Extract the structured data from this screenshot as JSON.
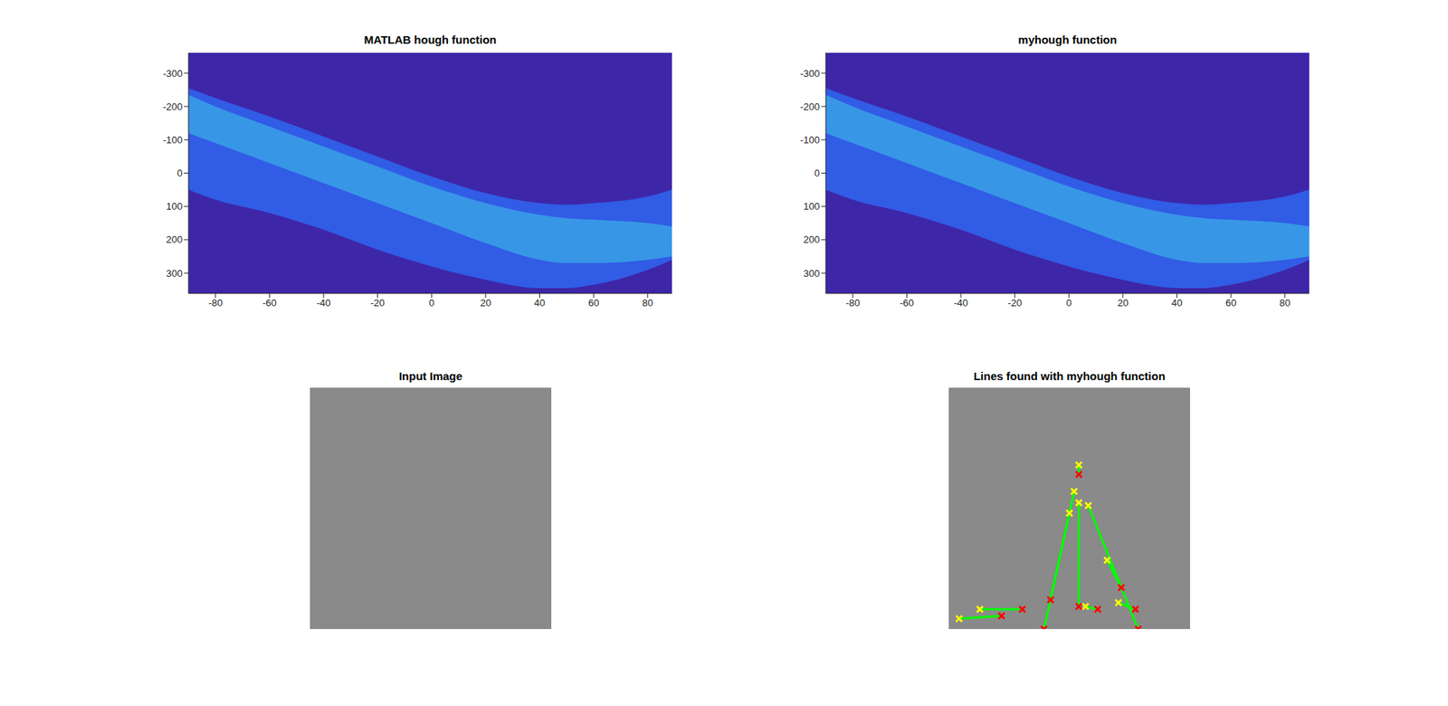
{
  "chart_data": [
    {
      "type": "area",
      "title": "MATLAB hough function",
      "color": "#3e26a8",
      "x": [
        -90,
        -80,
        -60,
        -40,
        -20,
        0,
        20,
        40,
        50,
        60,
        80,
        89
      ],
      "series": [
        {
          "color": "#2f66f0",
          "low": [
            -255,
            -225,
            -170,
            -110,
            -50,
            10,
            60,
            90,
            95,
            90,
            70,
            50
          ],
          "high": [
            50,
            80,
            120,
            170,
            230,
            280,
            320,
            345,
            345,
            335,
            290,
            260
          ]
        },
        {
          "color": "#3aa0e8",
          "low": [
            -235,
            -200,
            -140,
            -80,
            -20,
            40,
            90,
            125,
            135,
            140,
            150,
            160
          ],
          "high": [
            -120,
            -90,
            -30,
            30,
            90,
            150,
            210,
            260,
            270,
            270,
            260,
            250
          ]
        }
      ],
      "xlim": [
        -90,
        89
      ],
      "ylim": [
        -361,
        361
      ],
      "xticks": [
        -80,
        -60,
        -40,
        -20,
        0,
        20,
        40,
        60,
        80
      ],
      "yticks": [
        -300,
        -200,
        -100,
        0,
        100,
        200,
        300
      ]
    },
    {
      "type": "area",
      "title": "myhough function",
      "color": "#3e26a8",
      "x": [
        -90,
        -80,
        -60,
        -40,
        -20,
        0,
        20,
        40,
        50,
        60,
        80,
        89
      ],
      "series": [
        {
          "color": "#2f66f0",
          "low": [
            -255,
            -225,
            -170,
            -110,
            -50,
            10,
            60,
            90,
            95,
            90,
            70,
            50
          ],
          "high": [
            50,
            80,
            120,
            170,
            230,
            280,
            320,
            345,
            345,
            335,
            290,
            260
          ]
        },
        {
          "color": "#3aa0e8",
          "low": [
            -235,
            -200,
            -140,
            -80,
            -20,
            40,
            90,
            125,
            135,
            140,
            150,
            160
          ],
          "high": [
            -120,
            -90,
            -30,
            30,
            90,
            150,
            210,
            260,
            270,
            270,
            260,
            250
          ]
        }
      ],
      "xlim": [
        -90,
        89
      ],
      "ylim": [
        -361,
        361
      ],
      "xticks": [
        -80,
        -60,
        -40,
        -20,
        0,
        20,
        40,
        60,
        80
      ],
      "yticks": [
        -300,
        -200,
        -100,
        0,
        100,
        200,
        300
      ]
    },
    {
      "type": "image",
      "title": "Input Image",
      "color": "#8a8a8a",
      "tick_labels": false
    },
    {
      "type": "line",
      "title": "Lines found with myhough function",
      "color": "#8a8a8a",
      "tick_labels": false,
      "xlim": [
        0,
        256
      ],
      "ylim": [
        0,
        256
      ],
      "series": [
        {
          "color": "#00ff00",
          "marker": "x",
          "colors": [
            "#ffff00",
            "#ff0000"
          ],
          "x": [
            133,
            101
          ],
          "values": [
            110,
            256
          ]
        },
        {
          "color": "#00ff00",
          "marker": "x",
          "colors": [
            "#ffff00",
            "#ff0000"
          ],
          "x": [
            128,
            108
          ],
          "values": [
            133,
            225
          ]
        },
        {
          "color": "#00ff00",
          "marker": "x",
          "colors": [
            "#ffff00",
            "#ff0000"
          ],
          "x": [
            138,
            138
          ],
          "values": [
            122,
            232
          ]
        },
        {
          "color": "#00ff00",
          "marker": "x",
          "colors": [
            "#ffff00",
            "#ff0000"
          ],
          "x": [
            148,
            201
          ],
          "values": [
            125,
            256
          ]
        },
        {
          "color": "#00ff00",
          "marker": "x",
          "colors": [
            "#ffff00",
            "#ff0000"
          ],
          "x": [
            138,
            138
          ],
          "values": [
            82,
            92
          ]
        },
        {
          "color": "#00ff00",
          "marker": "x",
          "colors": [
            "#ffff00",
            "#ff0000"
          ],
          "x": [
            33,
            78
          ],
          "values": [
            235,
            235
          ]
        },
        {
          "color": "#00ff00",
          "marker": "x",
          "colors": [
            "#ffff00",
            "#ff0000"
          ],
          "x": [
            11,
            56
          ],
          "values": [
            245,
            242
          ]
        },
        {
          "color": "#00ff00",
          "marker": "x",
          "colors": [
            "#ffff00",
            "#ff0000"
          ],
          "x": [
            168,
            183
          ],
          "values": [
            183,
            212
          ]
        },
        {
          "color": "#00ff00",
          "marker": "x",
          "colors": [
            "#ffff00",
            "#ff0000"
          ],
          "x": [
            180,
            198
          ],
          "values": [
            228,
            235
          ]
        },
        {
          "color": "#00ff00",
          "marker": "x",
          "colors": [
            "#ffff00",
            "#ff0000"
          ],
          "x": [
            145,
            158
          ],
          "values": [
            232,
            235
          ]
        }
      ]
    }
  ]
}
